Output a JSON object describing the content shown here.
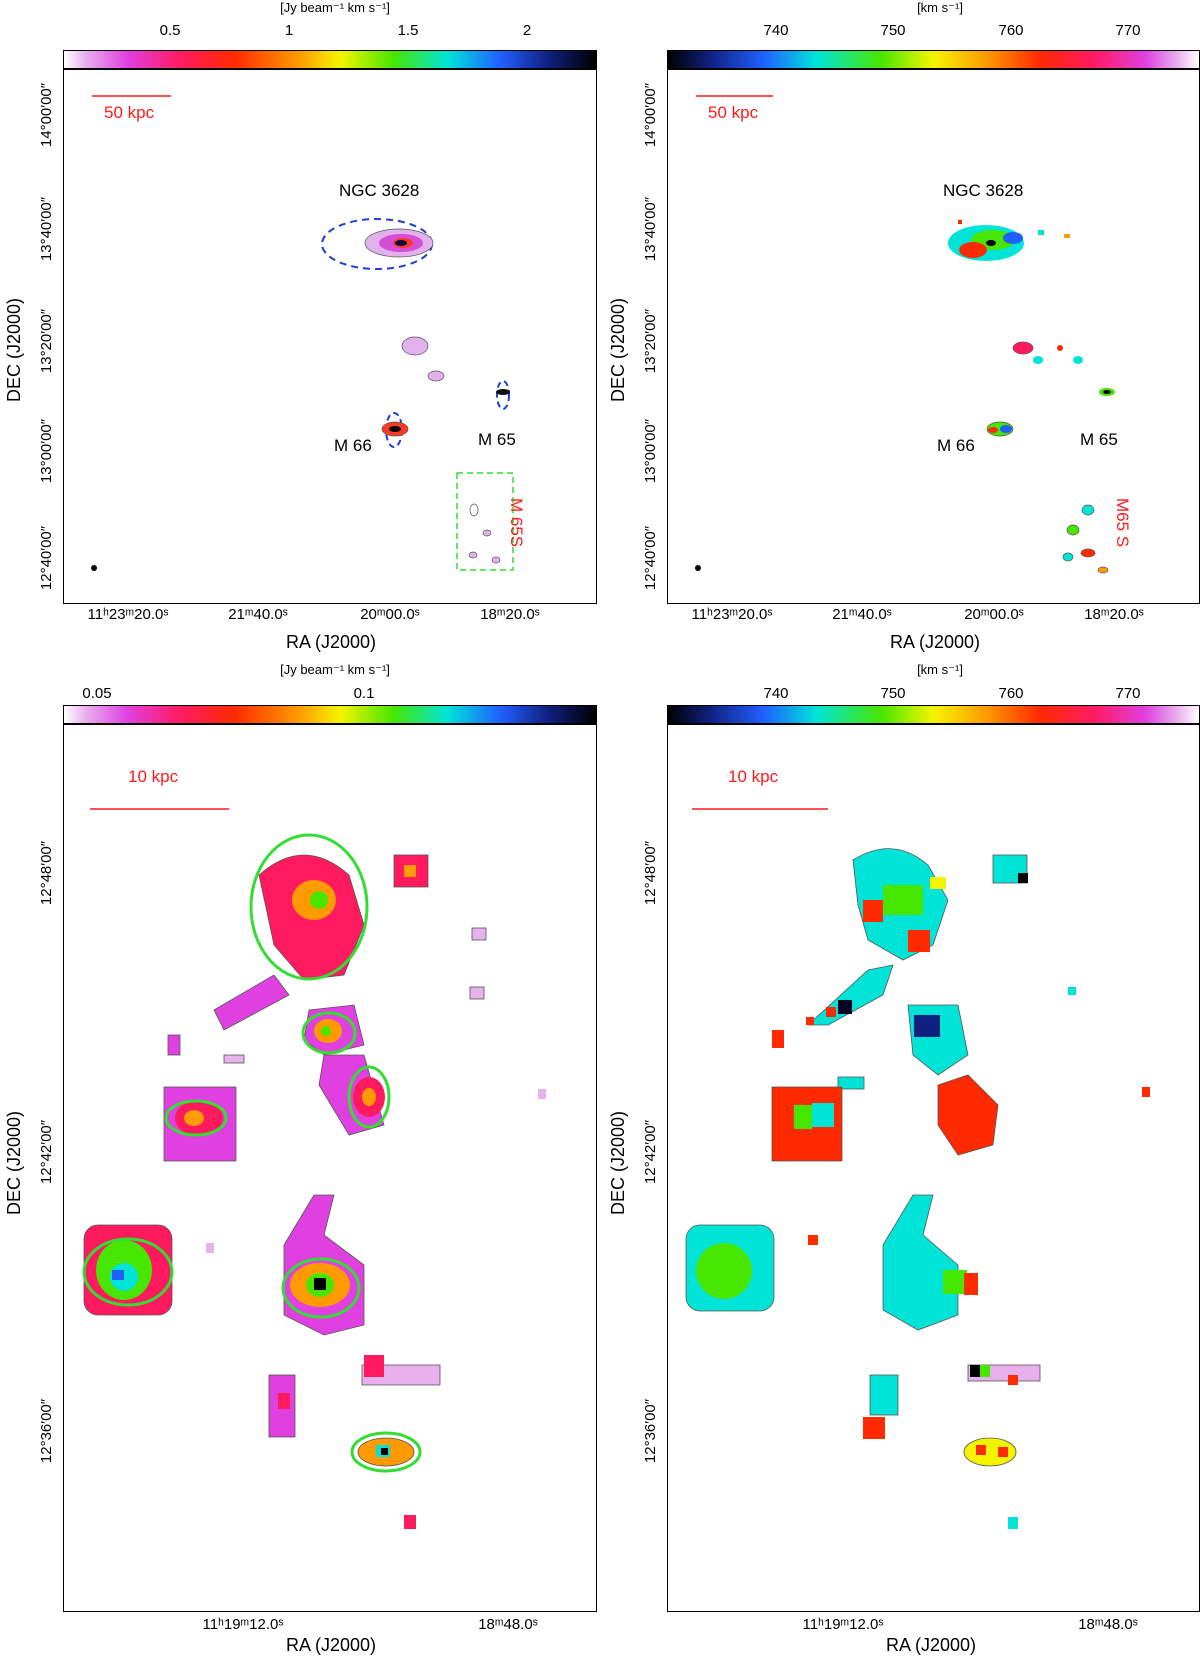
{
  "panels": [
    {
      "id": "top-left",
      "colorbar_unit": "[Jy beam⁻¹ km s⁻¹]",
      "colorbar_ticks": [
        "0.5",
        "1",
        "1.5",
        "2"
      ],
      "scalebar_label": "50 kpc",
      "ra_ticks": [
        "11ʰ23ᵐ20.0ˢ",
        "21ᵐ40.0ˢ",
        "20ᵐ00.0ˢ",
        "18ᵐ20.0ˢ"
      ],
      "dec_ticks": [
        "14°00′00″",
        "13°40′00″",
        "13°20′00″",
        "13°00′00″",
        "12°40′00″"
      ],
      "xlabel": "RA (J2000)",
      "ylabel": "DEC (J2000)",
      "sources": {
        "ngc3628": "NGC 3628",
        "m66": "M 66",
        "m65": "M 65",
        "m65s": "M 65S"
      }
    },
    {
      "id": "top-right",
      "colorbar_unit": "[km s⁻¹]",
      "colorbar_ticks": [
        "740",
        "750",
        "760",
        "770"
      ],
      "scalebar_label": "50 kpc",
      "ra_ticks": [
        "11ʰ23ᵐ20.0ˢ",
        "21ᵐ40.0ˢ",
        "20ᵐ00.0ˢ",
        "18ᵐ20.0ˢ"
      ],
      "dec_ticks": [
        "14°00′00″",
        "13°40′00″",
        "13°20′00″",
        "13°00′00″",
        "12°40′00″"
      ],
      "xlabel": "RA (J2000)",
      "ylabel": "DEC (J2000)",
      "sources": {
        "ngc3628": "NGC 3628",
        "m66": "M 66",
        "m65": "M 65",
        "m65s": "M65 S"
      }
    },
    {
      "id": "bottom-left",
      "colorbar_unit": "[Jy beam⁻¹ km s⁻¹]",
      "colorbar_ticks": [
        "0.05",
        "0.1"
      ],
      "scalebar_label": "10 kpc",
      "ra_ticks": [
        "11ʰ19ᵐ12.0ˢ",
        "18ᵐ48.0ˢ"
      ],
      "dec_ticks": [
        "12°48′00″",
        "12°42′00″",
        "12°36′00″"
      ],
      "xlabel": "RA (J2000)",
      "ylabel": "DEC (J2000)"
    },
    {
      "id": "bottom-right",
      "colorbar_unit": "[km s⁻¹]",
      "colorbar_ticks": [
        "740",
        "750",
        "760",
        "770"
      ],
      "scalebar_label": "10 kpc",
      "ra_ticks": [
        "11ʰ19ᵐ12.0ˢ",
        "18ᵐ48.0ˢ"
      ],
      "dec_ticks": [
        "12°48′00″",
        "12°42′00″",
        "12°36′00″"
      ],
      "xlabel": "RA (J2000)",
      "ylabel": "DEC (J2000)"
    }
  ],
  "colors": {
    "scalebar": "#ff1a1a",
    "ellipse_blue": "#1f3fd0",
    "box_green": "#33dd33",
    "ellipse_green": "#33dd33",
    "contour": "#555555"
  }
}
